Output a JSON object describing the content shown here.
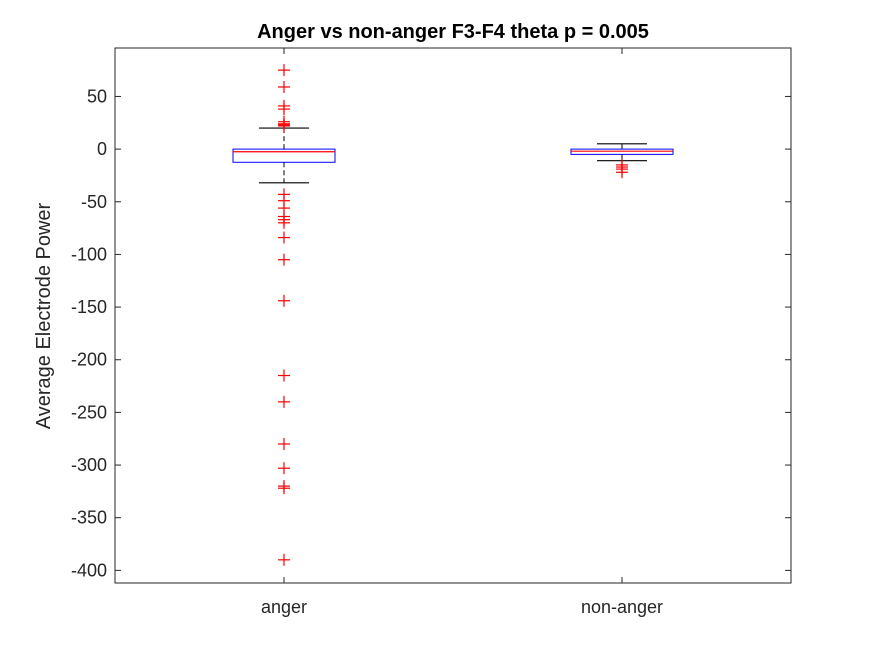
{
  "chart_data": {
    "type": "box",
    "title": "Anger vs non-anger F3-F4 theta p = 0.005",
    "xlabel": "",
    "ylabel": "Average Electrode Power",
    "ylim": [
      -412,
      96
    ],
    "yticks": [
      50,
      0,
      -50,
      -100,
      -150,
      -200,
      -250,
      -300,
      -350,
      -400
    ],
    "grid": false,
    "categories": [
      "anger",
      "non-anger"
    ],
    "boxes": [
      {
        "name": "anger",
        "q1": -12.5,
        "median": -2.5,
        "q3": 0,
        "whisker_low": -32,
        "whisker_high": 20,
        "outliers": [
          75,
          59,
          41,
          38,
          26,
          24,
          23,
          22,
          -43,
          -49,
          -56,
          -64,
          -67,
          -70,
          -84,
          -105,
          -144,
          -215,
          -240,
          -280,
          -303,
          -320,
          -322,
          -390
        ]
      },
      {
        "name": "non-anger",
        "q1": -5,
        "median": -2,
        "q3": 0,
        "whisker_low": -11,
        "whisker_high": 5,
        "outliers": [
          -15,
          -17,
          -19,
          -22
        ]
      }
    ],
    "colors": {
      "box": "#0000ff",
      "median": "#ff0000",
      "whisker": "#000000",
      "outlier": "#ff0000",
      "axis": "#262626"
    }
  }
}
